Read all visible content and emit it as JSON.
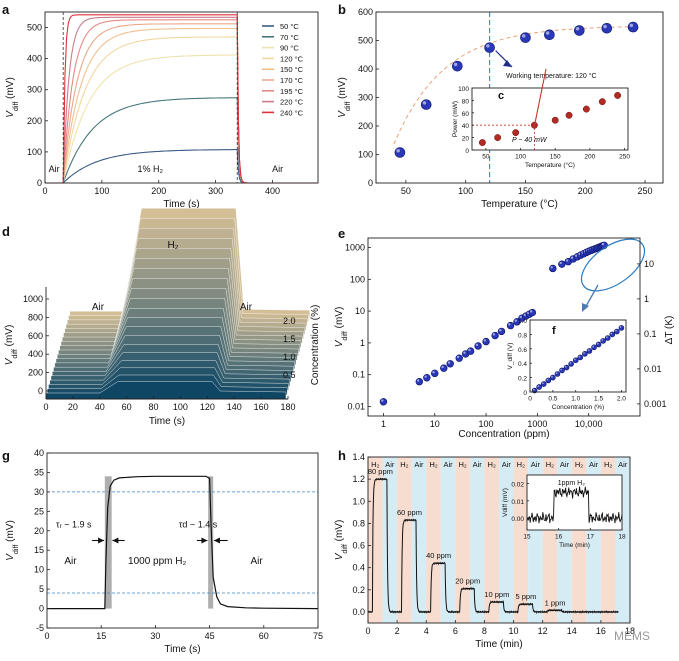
{
  "figure": {
    "watermark": "MEMS"
  },
  "chart_data": [
    {
      "id": "a",
      "type": "line",
      "panel_label": "a",
      "title": "",
      "xlabel": "Time (s)",
      "ylabel": "V_diff (mV)",
      "xlim": [
        0,
        480
      ],
      "ylim": [
        0,
        550
      ],
      "xticks": [
        0,
        100,
        200,
        300,
        400
      ],
      "yticks": [
        0,
        100,
        200,
        300,
        400,
        500
      ],
      "regions": [
        {
          "label": "Air",
          "x": [
            0,
            32
          ]
        },
        {
          "label": "1% H₂",
          "x": [
            32,
            338
          ]
        },
        {
          "label": "Air",
          "x": [
            338,
            480
          ]
        }
      ],
      "h2_on": 32,
      "h2_off": 338,
      "series": [
        {
          "name": "50 °C",
          "color": "#3b5c86",
          "plateau": 108
        },
        {
          "name": "70 °C",
          "color": "#47787a",
          "plateau": 275
        },
        {
          "name": "90 °C",
          "color": "#efe3b0",
          "plateau": 412
        },
        {
          "name": "120 °C",
          "color": "#f2d7a0",
          "plateau": 470
        },
        {
          "name": "150 °C",
          "color": "#f0c090",
          "plateau": 497
        },
        {
          "name": "170 °C",
          "color": "#eaa98a",
          "plateau": 512
        },
        {
          "name": "195 °C",
          "color": "#e38a86",
          "plateau": 525
        },
        {
          "name": "220 °C",
          "color": "#c87c8c",
          "plateau": 533
        },
        {
          "name": "240 °C",
          "color": "#e0303a",
          "plateau": 541
        }
      ]
    },
    {
      "id": "b",
      "type": "scatter",
      "panel_label": "b",
      "xlabel": "Temperature (°C)",
      "ylabel": "V_diff (mV)",
      "xlim": [
        25,
        265
      ],
      "ylim": [
        0,
        600
      ],
      "xticks": [
        50,
        100,
        150,
        200,
        250
      ],
      "yticks": [
        0,
        100,
        200,
        300,
        400,
        500,
        600
      ],
      "x": [
        45,
        67,
        93,
        120,
        150,
        170,
        195,
        218,
        240
      ],
      "y": [
        107,
        275,
        410,
        475,
        510,
        520,
        535,
        543,
        547
      ],
      "vline": 120,
      "annotation": "Working temperature: 120 °C"
    },
    {
      "id": "c",
      "type": "scatter",
      "panel_label": "c",
      "xlabel": "Temperature (°C)",
      "ylabel": "Power (mW)",
      "xlim": [
        30,
        255
      ],
      "ylim": [
        0,
        100
      ],
      "xticks": [
        50,
        100,
        150,
        200,
        250
      ],
      "yticks": [
        0,
        20,
        40,
        60,
        80,
        100
      ],
      "x": [
        45,
        67,
        93,
        120,
        150,
        170,
        195,
        218,
        240
      ],
      "y": [
        12,
        20,
        28,
        40,
        48,
        56,
        66,
        78,
        88
      ],
      "guide": {
        "x": 120,
        "y": 40
      },
      "annotation": "P ~ 40 mW"
    },
    {
      "id": "d",
      "type": "area",
      "panel_label": "d",
      "xlabel": "Time (s)",
      "ylabel": "V_diff (mV)",
      "zlabel": "Concentration (%)",
      "xlim": [
        0,
        180
      ],
      "ylim": [
        0,
        1000
      ],
      "xticks": [
        0,
        20,
        40,
        60,
        80,
        100,
        120,
        140,
        160,
        180
      ],
      "yticks": [
        0,
        200,
        400,
        600,
        800,
        1000
      ],
      "zticks": [
        "0.5",
        "1.0",
        "1.5",
        "2.0"
      ],
      "labels": {
        "gas": "H₂",
        "air_left": "Air",
        "air_right": "Air"
      },
      "concentrations": [
        0.1,
        0.2,
        0.3,
        0.4,
        0.5,
        0.6,
        0.7,
        0.8,
        0.9,
        1.0,
        1.1,
        1.2,
        1.3,
        1.4,
        1.5,
        1.6,
        1.7,
        1.8,
        1.9,
        2.0
      ],
      "plateaus": [
        18,
        30,
        45,
        60,
        80,
        100,
        125,
        150,
        175,
        200,
        230,
        260,
        290,
        320,
        350,
        380,
        410,
        440,
        470,
        500
      ]
    },
    {
      "id": "e",
      "type": "scatter",
      "panel_label": "e",
      "xlabel": "Concentration (ppm)",
      "ylabel": "V_diff (mV)",
      "y2label": "ΔT (K)",
      "xscale": "log",
      "yscale": "log",
      "xlim": [
        0.5,
        100000
      ],
      "ylim": [
        0.005,
        2000
      ],
      "xticks": [
        1,
        10,
        100,
        1000,
        10000
      ],
      "xticklabels": [
        "1",
        "10",
        "100",
        "1000",
        "10,000"
      ],
      "yticks": [
        0.01,
        0.1,
        1,
        10,
        100,
        1000
      ],
      "yticklabels": [
        "0.01",
        "0.1",
        "1",
        "10",
        "100",
        "1000"
      ],
      "y2ticks": [
        0.001,
        0.01,
        0.1,
        1,
        10
      ],
      "y2ticklabels": [
        "0.001",
        "0.01",
        "0.1",
        "1",
        "10"
      ],
      "x": [
        1,
        5,
        7,
        10,
        15,
        20,
        30,
        40,
        50,
        70,
        100,
        150,
        200,
        300,
        400,
        500,
        600,
        700,
        800,
        2000,
        3000,
        4000,
        5000,
        6000,
        7000,
        8000,
        9000,
        10000,
        11000,
        12000,
        13000,
        14000,
        15000,
        16000,
        17000,
        18000,
        19000,
        20000
      ],
      "y": [
        0.014,
        0.06,
        0.08,
        0.11,
        0.16,
        0.22,
        0.33,
        0.45,
        0.55,
        0.8,
        1.1,
        1.7,
        2.3,
        3.5,
        4.6,
        6,
        7,
        8,
        9,
        220,
        300,
        360,
        440,
        510,
        580,
        640,
        700,
        760,
        810,
        860,
        900,
        940,
        980,
        1020,
        1060,
        1100,
        1140,
        1180
      ]
    },
    {
      "id": "f",
      "type": "scatter",
      "panel_label": "f",
      "xlabel": "Concentration (%)",
      "ylabel": "V_diff (V)",
      "xlim": [
        0,
        2.1
      ],
      "ylim": [
        0,
        1.0
      ],
      "xticks": [
        0,
        0.5,
        1.0,
        1.5,
        2.0
      ],
      "xticklabels": [
        "0",
        "0.5",
        "1.0",
        "1.5",
        "2.0"
      ],
      "yticks": [
        0,
        0.2,
        0.4,
        0.6,
        0.8,
        1.0
      ],
      "yticklabels": [
        "0",
        "0.2",
        "0.4",
        "0.6",
        "0.8",
        "1.0"
      ],
      "x": [
        0.1,
        0.2,
        0.3,
        0.4,
        0.5,
        0.6,
        0.7,
        0.8,
        0.9,
        1.0,
        1.1,
        1.2,
        1.3,
        1.4,
        1.5,
        1.6,
        1.7,
        1.8,
        1.9,
        2.0
      ],
      "y": [
        0.02,
        0.07,
        0.11,
        0.16,
        0.2,
        0.25,
        0.3,
        0.34,
        0.39,
        0.44,
        0.48,
        0.53,
        0.57,
        0.62,
        0.66,
        0.71,
        0.75,
        0.8,
        0.84,
        0.89
      ]
    },
    {
      "id": "g",
      "type": "line",
      "panel_label": "g",
      "xlabel": "Time (s)",
      "ylabel": "V_diff (mV)",
      "xlim": [
        0,
        75
      ],
      "ylim": [
        -5,
        40
      ],
      "xticks": [
        0,
        15,
        30,
        45,
        60,
        75
      ],
      "yticks": [
        -5,
        0,
        5,
        10,
        15,
        20,
        25,
        30,
        35,
        40
      ],
      "x": [
        0,
        16,
        16.3,
        16.8,
        17.5,
        18.5,
        20,
        25,
        30,
        40,
        44,
        45,
        45.4,
        46,
        47,
        48,
        50,
        55,
        60,
        75
      ],
      "y": [
        0,
        0,
        12,
        26,
        31.5,
        33,
        33.6,
        33.9,
        34,
        34,
        34,
        33.5,
        22,
        8,
        3,
        1.2,
        0.5,
        0.2,
        0.1,
        0
      ],
      "hlines": [
        30,
        4
      ],
      "shaded": [
        [
          16,
          17.9
        ],
        [
          44.6,
          46
        ]
      ],
      "annotations": {
        "rise": "τᵣ ~ 1.9 s",
        "decay": "τd ~ 1.4 s",
        "air_left": "Air",
        "gas": "1000 ppm H₂",
        "air_right": "Air"
      }
    },
    {
      "id": "h",
      "type": "line",
      "panel_label": "h",
      "xlabel": "Time (min)",
      "ylabel": "V_diff (mV)",
      "xlim": [
        0,
        18
      ],
      "ylim": [
        -0.1,
        1.4
      ],
      "xticks": [
        0,
        2,
        4,
        6,
        8,
        10,
        12,
        14,
        16,
        18
      ],
      "yticks": [
        0,
        0.2,
        0.4,
        0.6,
        0.8,
        1.0,
        1.2,
        1.4
      ],
      "yticklabels": [
        "0.0",
        "0.2",
        "0.4",
        "0.6",
        "0.8",
        "1.0",
        "1.2",
        "1.4"
      ],
      "bands": [
        "H₂",
        "Air",
        "H₂",
        "Air",
        "H₂",
        "Air",
        "H₂",
        "Air",
        "H₂",
        "Air",
        "H₂",
        "Air",
        "H₂",
        "Air",
        "H₂",
        "Air",
        "H₂",
        "Air"
      ],
      "pulses": [
        {
          "label": "80 ppm",
          "level": 1.2
        },
        {
          "label": "60 ppm",
          "level": 0.83
        },
        {
          "label": "40 ppm",
          "level": 0.44
        },
        {
          "label": "20 ppm",
          "level": 0.21
        },
        {
          "label": "10 ppm",
          "level": 0.09
        },
        {
          "label": "5 ppm",
          "level": 0.07
        },
        {
          "label": "1 ppm",
          "level": 0.015
        }
      ],
      "inset": {
        "title": "1ppm H₂",
        "xlabel": "Time (min)",
        "ylabel": "V_diff (mV)",
        "xlim": [
          15,
          18
        ],
        "ylim": [
          -0.007,
          0.025
        ],
        "xticks": [
          15,
          16,
          17,
          18
        ],
        "yticks": [
          0,
          0.01,
          0.02
        ],
        "yticklabels": [
          "0.00",
          "0.01",
          "0.02"
        ],
        "on": 15.85,
        "off": 16.95,
        "level": 0.015
      }
    }
  ]
}
